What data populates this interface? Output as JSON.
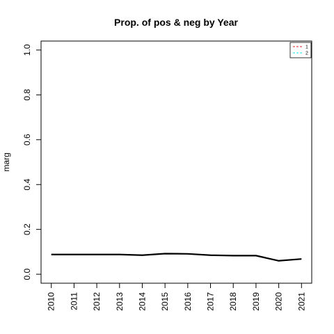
{
  "chart_data": {
    "type": "line",
    "title": "Prop. of pos & neg by Year",
    "xlabel": "",
    "ylabel": "marg",
    "x": [
      2010,
      2011,
      2012,
      2013,
      2014,
      2015,
      2016,
      2017,
      2018,
      2019,
      2020,
      2021
    ],
    "xlim": [
      2009.55,
      2021.45
    ],
    "ylim": [
      -0.04,
      1.04
    ],
    "y_ticks": [
      0.0,
      0.2,
      0.4,
      0.6,
      0.8,
      1.0
    ],
    "y_tick_labels": [
      "0.0",
      "0.2",
      "0.4",
      "0.6",
      "0.8",
      "1.0"
    ],
    "x_tick_labels": [
      "2010",
      "2011",
      "2012",
      "2013",
      "2014",
      "2015",
      "2016",
      "2017",
      "2018",
      "2019",
      "2020",
      "2021"
    ],
    "grid": false,
    "series": [
      {
        "values": [
          0.088,
          0.088,
          0.088,
          0.088,
          0.085,
          0.092,
          0.091,
          0.085,
          0.083,
          0.083,
          0.06,
          0.068
        ],
        "color": "#000000",
        "line_style": "solid"
      }
    ],
    "legend": {
      "position": "top-right",
      "entries": [
        {
          "label": "1",
          "color": "#e41a1c",
          "line_style": "dashed"
        },
        {
          "label": "2",
          "color": "#00e5ee",
          "line_style": "dashed"
        }
      ]
    }
  }
}
